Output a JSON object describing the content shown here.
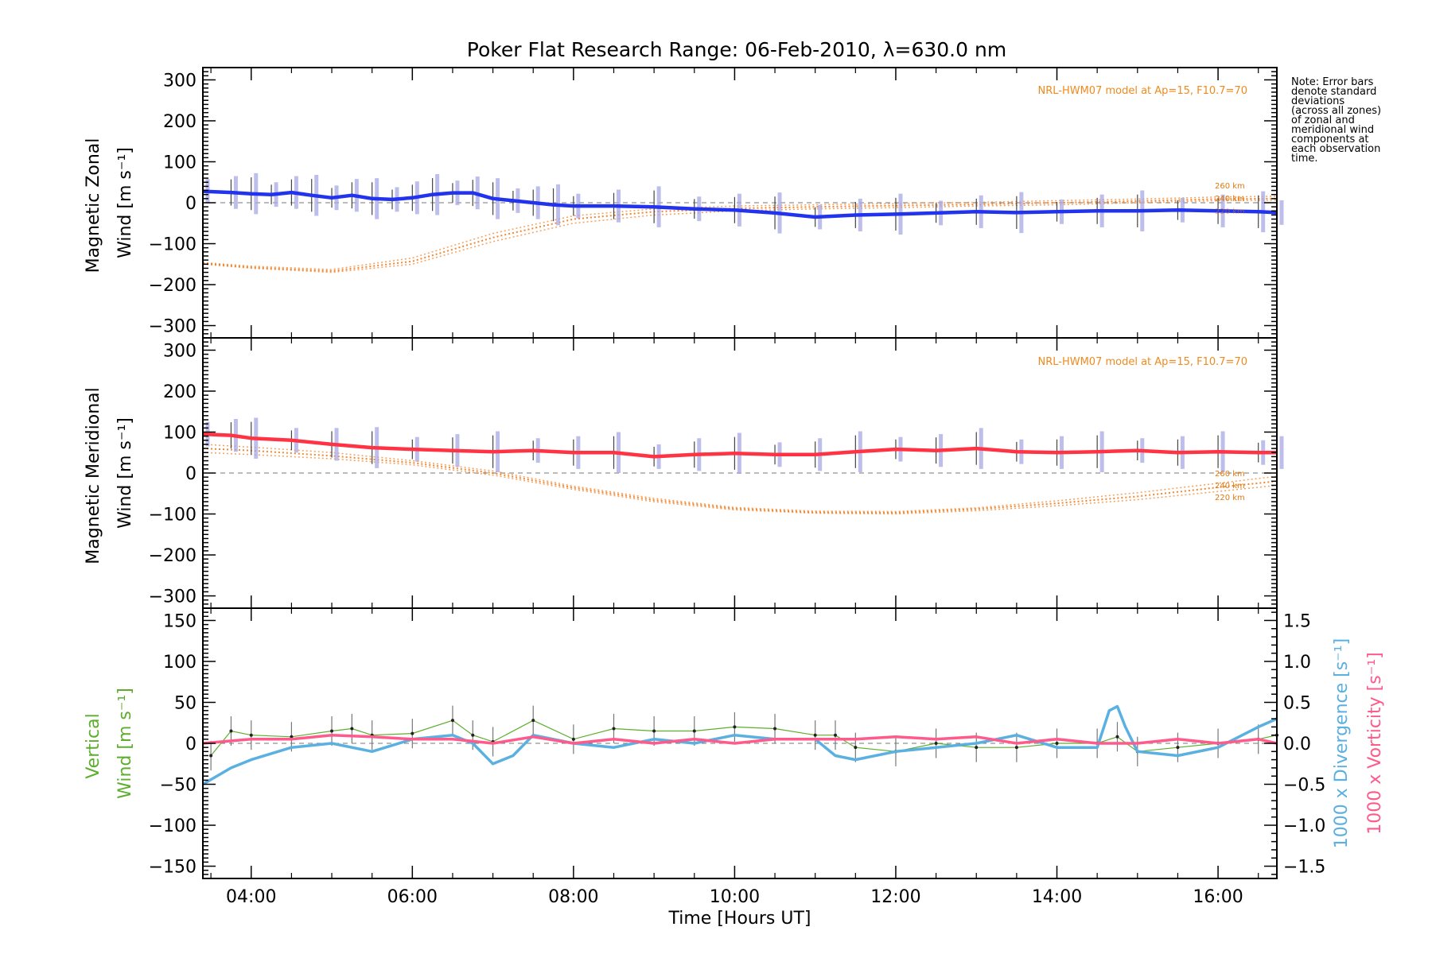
{
  "chart_data": {
    "type": "line",
    "title": "Poker Flat Research Range: 06-Feb-2010, λ=630.0 nm",
    "xlabel": "Time [Hours UT]",
    "xlim": [
      3.4,
      16.73
    ],
    "xticks": [
      4,
      6,
      8,
      10,
      12,
      14,
      16
    ],
    "xtick_labels": [
      "04:00",
      "06:00",
      "08:00",
      "10:00",
      "12:00",
      "14:00",
      "16:00"
    ],
    "side_note": [
      "Note: Error bars",
      "denote standard",
      "deviations",
      "(across all zones)",
      "of zonal and",
      "meridional wind",
      "components at",
      "each observation",
      "time."
    ],
    "panels": [
      {
        "key": "zonal",
        "ylabel_lines": [
          "Magnetic Zonal",
          "Wind [m s⁻¹]"
        ],
        "ylim": [
          -330,
          330
        ],
        "yticks": [
          -300,
          -200,
          -100,
          0,
          100,
          200,
          300
        ],
        "model_note": "NRL-HWM07 model at Ap=15, F10.7=70",
        "model_altitudes": [
          "260 km",
          "240 km",
          "220 km"
        ],
        "series": [
          {
            "name": "Zonal wind",
            "color": "#2233ee",
            "x": [
              3.4,
              3.75,
              4.0,
              4.25,
              4.5,
              4.75,
              5.0,
              5.25,
              5.5,
              5.75,
              6.0,
              6.25,
              6.5,
              6.75,
              7.0,
              7.25,
              7.5,
              7.75,
              8.0,
              8.5,
              9.0,
              9.5,
              10.0,
              10.5,
              11.0,
              11.5,
              12.0,
              12.5,
              13.0,
              13.5,
              14.0,
              14.5,
              15.0,
              15.5,
              16.0,
              16.5,
              16.73
            ],
            "values": [
              28,
              25,
              22,
              20,
              25,
              18,
              12,
              18,
              10,
              8,
              12,
              20,
              24,
              24,
              10,
              5,
              0,
              -5,
              -8,
              -8,
              -10,
              -15,
              -18,
              -25,
              -35,
              -30,
              -28,
              -25,
              -22,
              -24,
              -22,
              -20,
              -20,
              -18,
              -20,
              -22,
              -24
            ]
          }
        ],
        "model_curves": [
          {
            "name": "HWM07 220 km",
            "x": [
              3.4,
              4.0,
              5.0,
              6.0,
              7.0,
              8.0,
              9.0,
              10.0,
              11.0,
              12.0,
              13.0,
              14.0,
              15.0,
              16.0,
              16.73
            ],
            "values": [
              -150,
              -160,
              -170,
              -150,
              -95,
              -50,
              -30,
              -20,
              -15,
              -12,
              -8,
              -5,
              0,
              5,
              6
            ]
          },
          {
            "name": "HWM07 240 km",
            "x": [
              3.4,
              4.0,
              5.0,
              6.0,
              7.0,
              8.0,
              9.0,
              10.0,
              11.0,
              12.0,
              13.0,
              14.0,
              15.0,
              16.0,
              16.73
            ],
            "values": [
              -148,
              -158,
              -167,
              -143,
              -85,
              -40,
              -22,
              -14,
              -10,
              -7,
              -4,
              0,
              4,
              9,
              10
            ]
          },
          {
            "name": "HWM07 260 km",
            "x": [
              3.4,
              4.0,
              5.0,
              6.0,
              7.0,
              8.0,
              9.0,
              10.0,
              11.0,
              12.0,
              13.0,
              14.0,
              15.0,
              16.0,
              16.73
            ],
            "values": [
              -146,
              -155,
              -163,
              -135,
              -75,
              -32,
              -15,
              -8,
              -5,
              -2,
              1,
              5,
              9,
              14,
              16
            ]
          }
        ]
      },
      {
        "key": "meridional",
        "ylabel_lines": [
          "Magnetic Meridional",
          "Wind [m s⁻¹]"
        ],
        "ylim": [
          -330,
          330
        ],
        "yticks": [
          -300,
          -200,
          -100,
          0,
          100,
          200,
          300
        ],
        "model_note": "NRL-HWM07 model at Ap=15, F10.7=70",
        "model_altitudes": [
          "260 km",
          "240 km",
          "220 km"
        ],
        "series": [
          {
            "name": "Meridional wind",
            "color": "#ff3344",
            "x": [
              3.4,
              3.75,
              4.0,
              4.5,
              5.0,
              5.5,
              6.0,
              6.5,
              7.0,
              7.5,
              8.0,
              8.5,
              9.0,
              9.5,
              10.0,
              10.5,
              11.0,
              11.5,
              12.0,
              12.5,
              13.0,
              13.5,
              14.0,
              14.5,
              15.0,
              15.5,
              16.0,
              16.5,
              16.73
            ],
            "values": [
              95,
              92,
              85,
              80,
              70,
              62,
              58,
              55,
              52,
              55,
              50,
              50,
              40,
              45,
              48,
              45,
              45,
              52,
              58,
              55,
              60,
              52,
              50,
              52,
              55,
              50,
              52,
              50,
              50
            ]
          }
        ],
        "model_curves": [
          {
            "name": "HWM07 220 km",
            "x": [
              3.4,
              4.0,
              5.0,
              6.0,
              7.0,
              8.0,
              9.0,
              10.0,
              11.0,
              12.0,
              13.0,
              14.0,
              15.0,
              16.0,
              16.73
            ],
            "values": [
              50,
              45,
              35,
              20,
              -5,
              -40,
              -70,
              -90,
              -98,
              -100,
              -92,
              -80,
              -65,
              -45,
              -30
            ]
          },
          {
            "name": "HWM07 240 km",
            "x": [
              3.4,
              4.0,
              5.0,
              6.0,
              7.0,
              8.0,
              9.0,
              10.0,
              11.0,
              12.0,
              13.0,
              14.0,
              15.0,
              16.0,
              16.73
            ],
            "values": [
              60,
              55,
              42,
              25,
              0,
              -36,
              -66,
              -87,
              -96,
              -97,
              -88,
              -74,
              -57,
              -35,
              -20
            ]
          },
          {
            "name": "HWM07 260 km",
            "x": [
              3.4,
              4.0,
              5.0,
              6.0,
              7.0,
              8.0,
              9.0,
              10.0,
              11.0,
              12.0,
              13.0,
              14.0,
              15.0,
              16.0,
              16.73
            ],
            "values": [
              70,
              63,
              50,
              30,
              5,
              -32,
              -62,
              -84,
              -93,
              -94,
              -85,
              -68,
              -48,
              -25,
              -8
            ]
          }
        ]
      },
      {
        "key": "vertical",
        "ylabel_lines": [
          "Vertical",
          "Wind [m s⁻¹]"
        ],
        "ylabel_color": "#5cae2c",
        "ylim": [
          -165,
          165
        ],
        "yticks": [
          -150,
          -100,
          -50,
          0,
          50,
          100,
          150
        ],
        "right_axis": {
          "ylim": [
            -1.65,
            1.65
          ],
          "yticks": [
            -1.5,
            -1.0,
            -0.5,
            0.0,
            0.5,
            1.0,
            1.5
          ],
          "ytick_labels": [
            "−1.5",
            "−1.0",
            "−0.5",
            "0.0",
            "0.5",
            "1.0",
            "1.5"
          ],
          "label_divergence": "1000 x Divergence [s⁻¹]",
          "label_vorticity": "1000 x Vorticity [s⁻¹]",
          "divergence_color": "#5ab0e0",
          "vorticity_color": "#ff5a8c"
        },
        "series": [
          {
            "name": "Vertical wind",
            "color": "#5cae2c",
            "x": [
              3.5,
              3.75,
              4.0,
              4.5,
              5.0,
              5.25,
              5.5,
              6.0,
              6.5,
              6.75,
              7.0,
              7.5,
              8.0,
              8.5,
              9.0,
              9.5,
              10.0,
              10.5,
              11.0,
              11.25,
              11.5,
              12.0,
              12.5,
              13.0,
              13.5,
              14.0,
              14.5,
              14.75,
              15.0,
              15.5,
              16.0,
              16.5,
              16.73
            ],
            "values": [
              -15,
              15,
              10,
              8,
              15,
              18,
              10,
              12,
              28,
              10,
              2,
              28,
              5,
              18,
              15,
              15,
              20,
              18,
              10,
              10,
              -5,
              -10,
              0,
              -5,
              -5,
              0,
              0,
              8,
              -10,
              -5,
              0,
              5,
              10
            ]
          },
          {
            "name": "1000 x Divergence",
            "color": "#5ab0e0",
            "x": [
              3.4,
              3.75,
              4.0,
              4.5,
              5.0,
              5.5,
              6.0,
              6.5,
              6.75,
              7.0,
              7.25,
              7.5,
              8.0,
              8.5,
              9.0,
              9.5,
              10.0,
              10.5,
              11.0,
              11.25,
              11.5,
              12.0,
              12.5,
              13.0,
              13.5,
              14.0,
              14.5,
              14.65,
              14.75,
              14.85,
              15.0,
              15.5,
              16.0,
              16.5,
              16.73
            ],
            "values": [
              -0.5,
              -0.3,
              -0.2,
              -0.05,
              0.0,
              -0.1,
              0.05,
              0.1,
              0.0,
              -0.25,
              -0.15,
              0.1,
              0.0,
              -0.05,
              0.05,
              0.0,
              0.1,
              0.05,
              0.05,
              -0.15,
              -0.2,
              -0.1,
              -0.05,
              0.0,
              0.1,
              -0.05,
              -0.05,
              0.4,
              0.45,
              0.2,
              -0.1,
              -0.15,
              -0.05,
              0.2,
              0.3
            ]
          },
          {
            "name": "1000 x Vorticity",
            "color": "#ff5a8c",
            "x": [
              3.4,
              4.0,
              4.5,
              5.0,
              5.5,
              6.0,
              6.5,
              7.0,
              7.5,
              8.0,
              8.5,
              9.0,
              9.5,
              10.0,
              10.5,
              11.0,
              11.5,
              12.0,
              12.5,
              13.0,
              13.5,
              14.0,
              14.5,
              15.0,
              15.5,
              16.0,
              16.5,
              16.73
            ],
            "values": [
              0.0,
              0.05,
              0.05,
              0.1,
              0.08,
              0.05,
              0.05,
              0.0,
              0.08,
              0.0,
              0.05,
              0.0,
              0.05,
              0.0,
              0.05,
              0.05,
              0.05,
              0.08,
              0.05,
              0.08,
              0.0,
              0.05,
              0.0,
              0.0,
              0.05,
              0.0,
              0.05,
              0.0
            ]
          }
        ]
      }
    ]
  }
}
